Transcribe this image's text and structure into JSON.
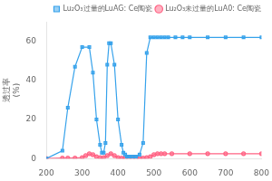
{
  "chart_data": {
    "type": "line",
    "ylabel": [
      "透过率",
      "(%)"
    ],
    "xlim": [
      200,
      800
    ],
    "ylim": [
      0,
      70
    ],
    "xticks": [
      200,
      300,
      400,
      500,
      600,
      700,
      800
    ],
    "yticks": [
      0,
      20,
      40,
      60
    ],
    "grid": false,
    "legend": "upper right",
    "series": [
      {
        "name": "Lu₂O₃过量的LuAG: Ce陶瓷",
        "marker": "square",
        "x": [
          200,
          245,
          260,
          280,
          300,
          320,
          330,
          340,
          350,
          355,
          360,
          365,
          370,
          375,
          380,
          390,
          400,
          410,
          415,
          420,
          425,
          430,
          440,
          450,
          460,
          470,
          480,
          490,
          500,
          510,
          520,
          530,
          540,
          560,
          580,
          600,
          650,
          700,
          750,
          800
        ],
        "values": [
          0,
          4,
          26,
          47,
          57,
          57,
          44,
          20,
          7,
          3,
          3,
          8,
          48,
          59,
          59,
          48,
          20,
          7,
          3,
          2,
          1,
          1,
          1,
          1,
          2,
          8,
          54,
          62,
          62,
          62,
          62,
          62,
          62,
          62,
          62,
          62,
          62,
          62,
          62,
          62
        ]
      },
      {
        "name": "Lu₂O₃未过量的LuA0: Ce陶瓷",
        "marker": "circle",
        "x": [
          200,
          245,
          260,
          280,
          300,
          310,
          320,
          330,
          340,
          350,
          360,
          370,
          380,
          390,
          400,
          410,
          420,
          430,
          440,
          450,
          460,
          470,
          480,
          490,
          500,
          510,
          520,
          530,
          550,
          600,
          650,
          700,
          750,
          800
        ],
        "values": [
          0,
          0.3,
          0.3,
          0.3,
          0.5,
          1.5,
          2.5,
          2,
          1,
          0.5,
          0.5,
          1.5,
          2.5,
          1.5,
          0.5,
          0.3,
          0.3,
          0.3,
          0.3,
          0.3,
          0.3,
          0.3,
          0.5,
          1,
          2,
          2.5,
          2.5,
          2.5,
          2.5,
          2.5,
          2.5,
          2.5,
          2.5,
          2.5
        ]
      }
    ]
  }
}
